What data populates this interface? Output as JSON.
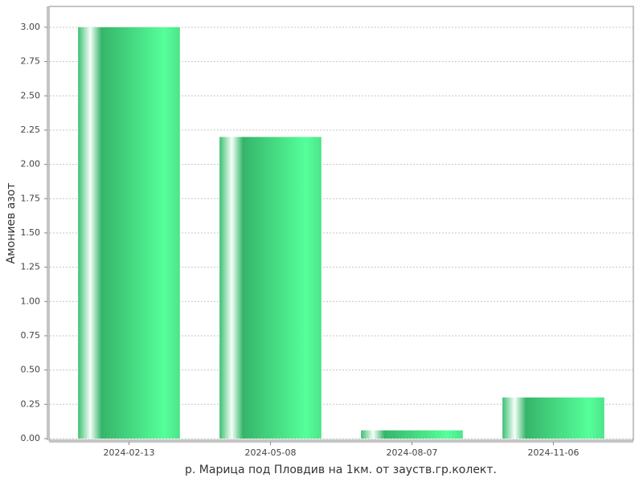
{
  "chart_data": {
    "type": "bar",
    "x_label": "р. Марица под Пловдив на 1км. от зауств.гр.колект.",
    "y_label": "Амониев азот",
    "categories": [
      "2024-02-13",
      "2024-05-08",
      "2024-08-07",
      "2024-11-06"
    ],
    "values": [
      3.0,
      2.2,
      0.06,
      0.3
    ],
    "color": "#55ff99",
    "ylim": [
      -0.012,
      3.152
    ],
    "yticks": [
      {
        "value": 0,
        "label": "0.00"
      },
      {
        "value": 0.25,
        "label": "0.25"
      },
      {
        "value": 0.5,
        "label": "0.50"
      },
      {
        "value": 0.75,
        "label": "0.75"
      },
      {
        "value": 1,
        "label": "1.00"
      },
      {
        "value": 1.25,
        "label": "1.25"
      },
      {
        "value": 1.5,
        "label": "1.50"
      },
      {
        "value": 1.75,
        "label": "1.75"
      },
      {
        "value": 2,
        "label": "2.00"
      },
      {
        "value": 2.25,
        "label": "2.25"
      },
      {
        "value": 2.5,
        "label": "2.50"
      },
      {
        "value": 2.75,
        "label": "2.75"
      },
      {
        "value": 3,
        "label": "3.00"
      }
    ],
    "grid": true
  }
}
